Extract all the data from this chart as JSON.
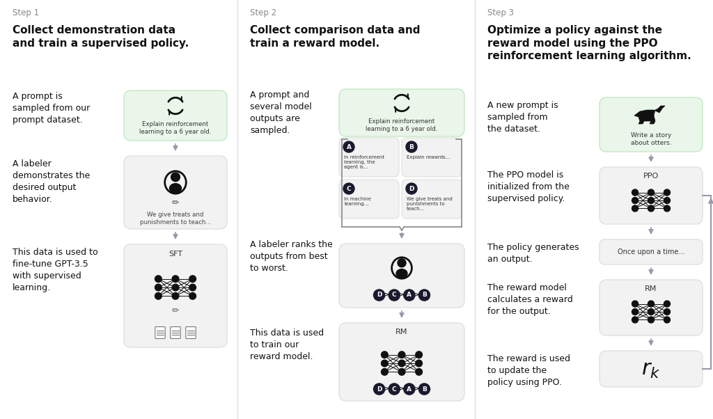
{
  "bg_color": "#ffffff",
  "step_label_color": "#888888",
  "step_title_color": "#111111",
  "body_text_color": "#111111",
  "box_bg_light": "#f2f2f2",
  "box_bg_green": "#eaf6ea",
  "arrow_color": "#9999aa",
  "dark_node": "#111111",
  "steps": [
    {
      "label": "Step 1",
      "title": "Collect demonstration data\nand train a supervised policy.",
      "descriptions": [
        "A prompt is\nsampled from our\nprompt dataset.",
        "A labeler\ndemonstrates the\ndesired output\nbehavior.",
        "This data is used to\nfine-tune GPT-3.5\nwith supervised\nlearning."
      ]
    },
    {
      "label": "Step 2",
      "title": "Collect comparison data and\ntrain a reward model.",
      "descriptions": [
        "A prompt and\nseveral model\noutputs are\nsampled.",
        "A labeler ranks the\noutputs from best\nto worst.",
        "This data is used\nto train our\nreward model."
      ]
    },
    {
      "label": "Step 3",
      "title": "Optimize a policy against the\nreward model using the PPO\nreinforcement learning algorithm.",
      "descriptions": [
        "A new prompt is\nsampled from\nthe dataset.",
        "The PPO model is\ninitialized from the\nsupervised policy.",
        "The policy generates\nan output.",
        "The reward model\ncalculates a reward\nfor the output.",
        "The reward is used\nto update the\npolicy using PPO."
      ]
    }
  ]
}
